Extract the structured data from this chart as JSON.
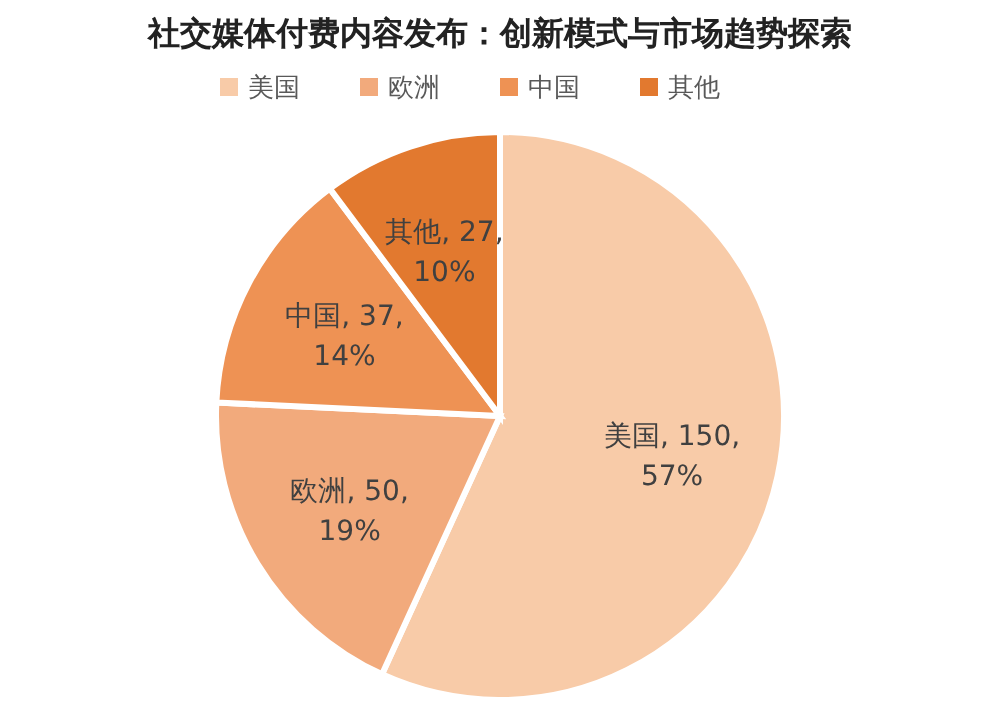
{
  "chart_data": {
    "type": "pie",
    "title": "社交媒体付费内容发布：创新模式与市场趋势探索",
    "categories": [
      "美国",
      "欧洲",
      "中国",
      "其他"
    ],
    "values": [
      150,
      50,
      37,
      27
    ],
    "colors": [
      "#f8cba8",
      "#f2aa7c",
      "#ee9254",
      "#e2792f"
    ],
    "value_labels": [
      "美国, 150, 57%",
      "欧洲, 50, 19%",
      "中国, 37, 14%",
      "其他, 27, 10%"
    ],
    "legend": "top"
  }
}
